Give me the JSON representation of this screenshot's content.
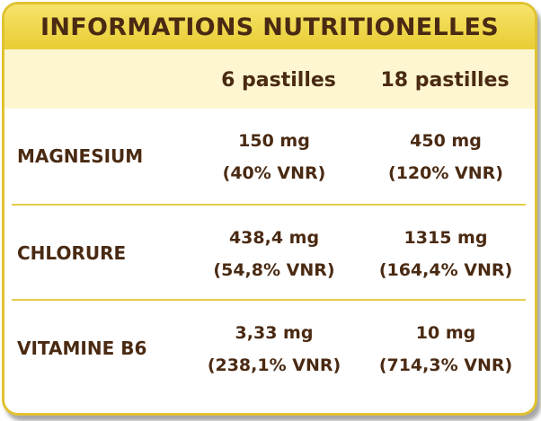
{
  "title": "INFORMATIONS NUTRITIONELLES",
  "columns": [
    "6 pastilles",
    "18 pastilles"
  ],
  "rows": [
    {
      "label": "MAGNESIUM",
      "a": [
        "150 mg",
        "(40% VNR)"
      ],
      "b": [
        "450 mg",
        "(120% VNR)"
      ]
    },
    {
      "label": "CHLORURE",
      "a": [
        "438,4 mg",
        "(54,8% VNR)"
      ],
      "b": [
        "1315 mg",
        "(164,4% VNR)"
      ]
    },
    {
      "label": "VITAMINE B6",
      "a": [
        "3,33 mg",
        "(238,1% VNR)"
      ],
      "b": [
        "10 mg",
        "(714,3% VNR)"
      ]
    }
  ],
  "colors": {
    "border": "#e0c230",
    "title_band": "#efd64a",
    "header_band": "#fdf6d0",
    "text": "#4a2a12"
  }
}
